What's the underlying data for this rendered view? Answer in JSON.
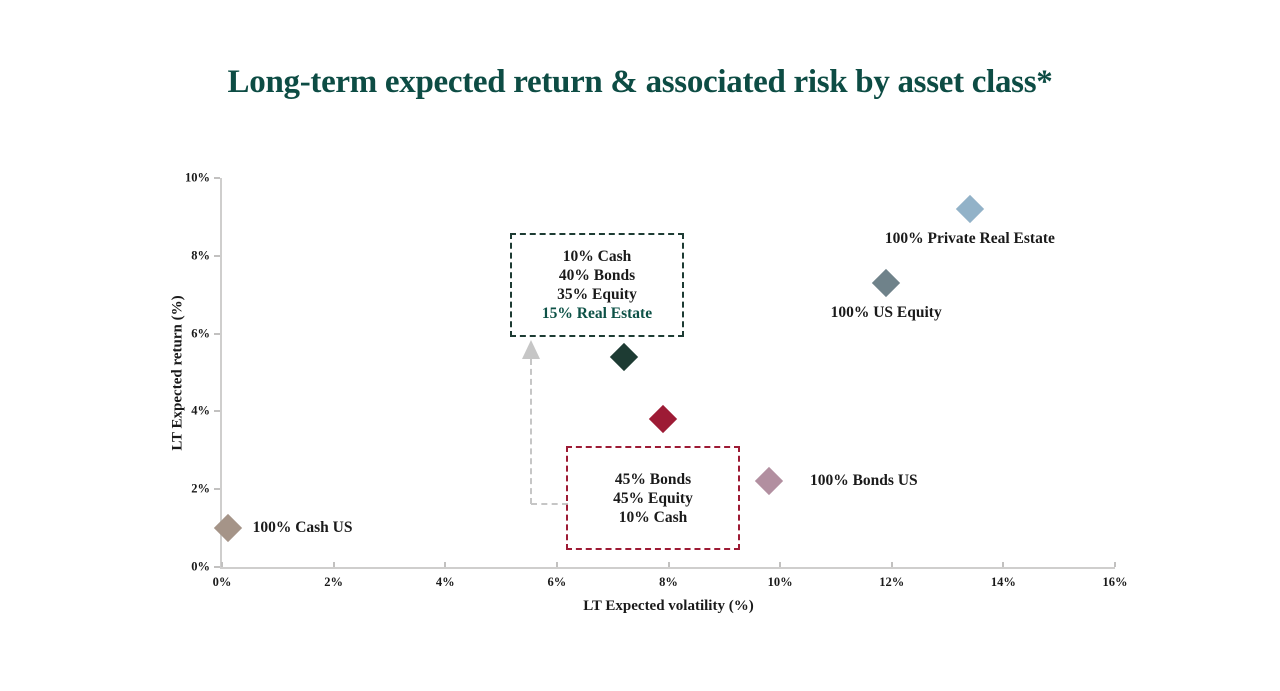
{
  "title": "Long-term expected return & associated risk by asset class*",
  "colors": {
    "title": "#0d4c44",
    "axis_line": "#cfcecd",
    "text": "#1a1a1a",
    "arrow": "#c6c6c6",
    "real_estate_highlight": "#0e5247"
  },
  "chart_data": {
    "type": "scatter",
    "title": "Long-term expected return & associated risk by asset class*",
    "xlabel": "LT Expected volatility (%)",
    "ylabel": "LT Expected return (%)",
    "xlim": [
      0,
      16
    ],
    "ylim": [
      0,
      10
    ],
    "x_ticks": [
      "0%",
      "2%",
      "4%",
      "6%",
      "8%",
      "10%",
      "12%",
      "14%",
      "16%"
    ],
    "y_ticks": [
      "0%",
      "2%",
      "4%",
      "6%",
      "8%",
      "10%"
    ],
    "x_tick_values": [
      0,
      2,
      4,
      6,
      8,
      10,
      12,
      14,
      16
    ],
    "y_tick_values": [
      0,
      2,
      4,
      6,
      8,
      10
    ],
    "grid": false,
    "legend": "none",
    "marker_shape": "diamond",
    "points": [
      {
        "name": "cash-us",
        "label": "100% Cash US",
        "x": 0.1,
        "y": 1.0,
        "color": "#a59488",
        "label_pos": "right"
      },
      {
        "name": "bonds-us",
        "label": "100% Bonds US",
        "x": 9.8,
        "y": 2.2,
        "color": "#b28fa0",
        "label_pos": "right"
      },
      {
        "name": "us-equity",
        "label": "100% US Equity",
        "x": 11.9,
        "y": 7.3,
        "color": "#6f828a",
        "label_pos": "below"
      },
      {
        "name": "private-real-estate",
        "label": "100% Private Real Estate",
        "x": 13.4,
        "y": 9.2,
        "color": "#92b2c8",
        "label_pos": "below"
      },
      {
        "name": "portfolio-with-real-estate",
        "label": "",
        "x": 7.2,
        "y": 5.4,
        "color": "#1d3b33",
        "label_pos": "none"
      },
      {
        "name": "portfolio-traditional",
        "label": "",
        "x": 7.9,
        "y": 3.8,
        "color": "#9d1b35",
        "label_pos": "none"
      }
    ],
    "annotations": [
      {
        "name": "real-estate-portfolio-box",
        "border_color": "#1d3b33",
        "lines": [
          {
            "text": "10% Cash",
            "color": "#1a1a1a"
          },
          {
            "text": "40% Bonds",
            "color": "#1a1a1a"
          },
          {
            "text": "35% Equity",
            "color": "#1a1a1a"
          },
          {
            "text": "15% Real Estate",
            "color": "#0e5247"
          }
        ]
      },
      {
        "name": "traditional-portfolio-box",
        "border_color": "#9d1b35",
        "lines": [
          {
            "text": "45% Bonds",
            "color": "#1a1a1a"
          },
          {
            "text": "45% Equity",
            "color": "#1a1a1a"
          },
          {
            "text": "10% Cash",
            "color": "#1a1a1a"
          }
        ]
      }
    ]
  }
}
